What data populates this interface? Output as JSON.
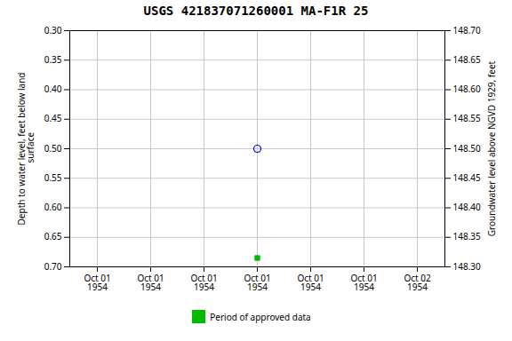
{
  "chart_data": {
    "type": "scatter",
    "title": "USGS 421837071260001 MA-F1R   25",
    "ylabel": "Depth to water level, feet below land\n surface",
    "y2label": "Groundwater level above NGVD 1929, feet",
    "categories": [
      "Oct 01\n1954",
      "Oct 01\n1954",
      "Oct 01\n1954",
      "Oct 01\n1954",
      "Oct 01\n1954",
      "Oct 01\n1954",
      "Oct 02\n1954"
    ],
    "series": [
      {
        "color": "blue",
        "marker": "open_circle",
        "values": [
          null,
          null,
          null,
          0.5,
          null,
          null,
          null
        ]
      },
      {
        "name": "Period of approved data",
        "color": "#00bb00",
        "marker": "square",
        "values": [
          null,
          null,
          null,
          0.685,
          null,
          null,
          null
        ]
      }
    ],
    "ylim": [
      0.7,
      0.3
    ],
    "yticks": [
      {
        "value": 0.3,
        "label": "0.30"
      },
      0.35,
      {
        "value": 0.4,
        "label": "0.40"
      },
      0.45,
      {
        "value": 0.5,
        "label": "0.50"
      },
      0.55,
      {
        "value": 0.6,
        "label": "0.60"
      },
      0.65,
      {
        "value": 0.7,
        "label": "0.70"
      }
    ],
    "y2lim": [
      148.3,
      148.7
    ],
    "y2ticks": [
      {
        "value": 148.7,
        "label": "148.70"
      },
      148.65,
      {
        "value": 148.6,
        "label": "148.60"
      },
      148.55,
      {
        "value": 148.5,
        "label": "148.50"
      },
      148.45,
      {
        "value": 148.4,
        "label": "148.40"
      },
      148.35,
      {
        "value": 148.3,
        "label": "148.30"
      }
    ],
    "grid": true
  }
}
